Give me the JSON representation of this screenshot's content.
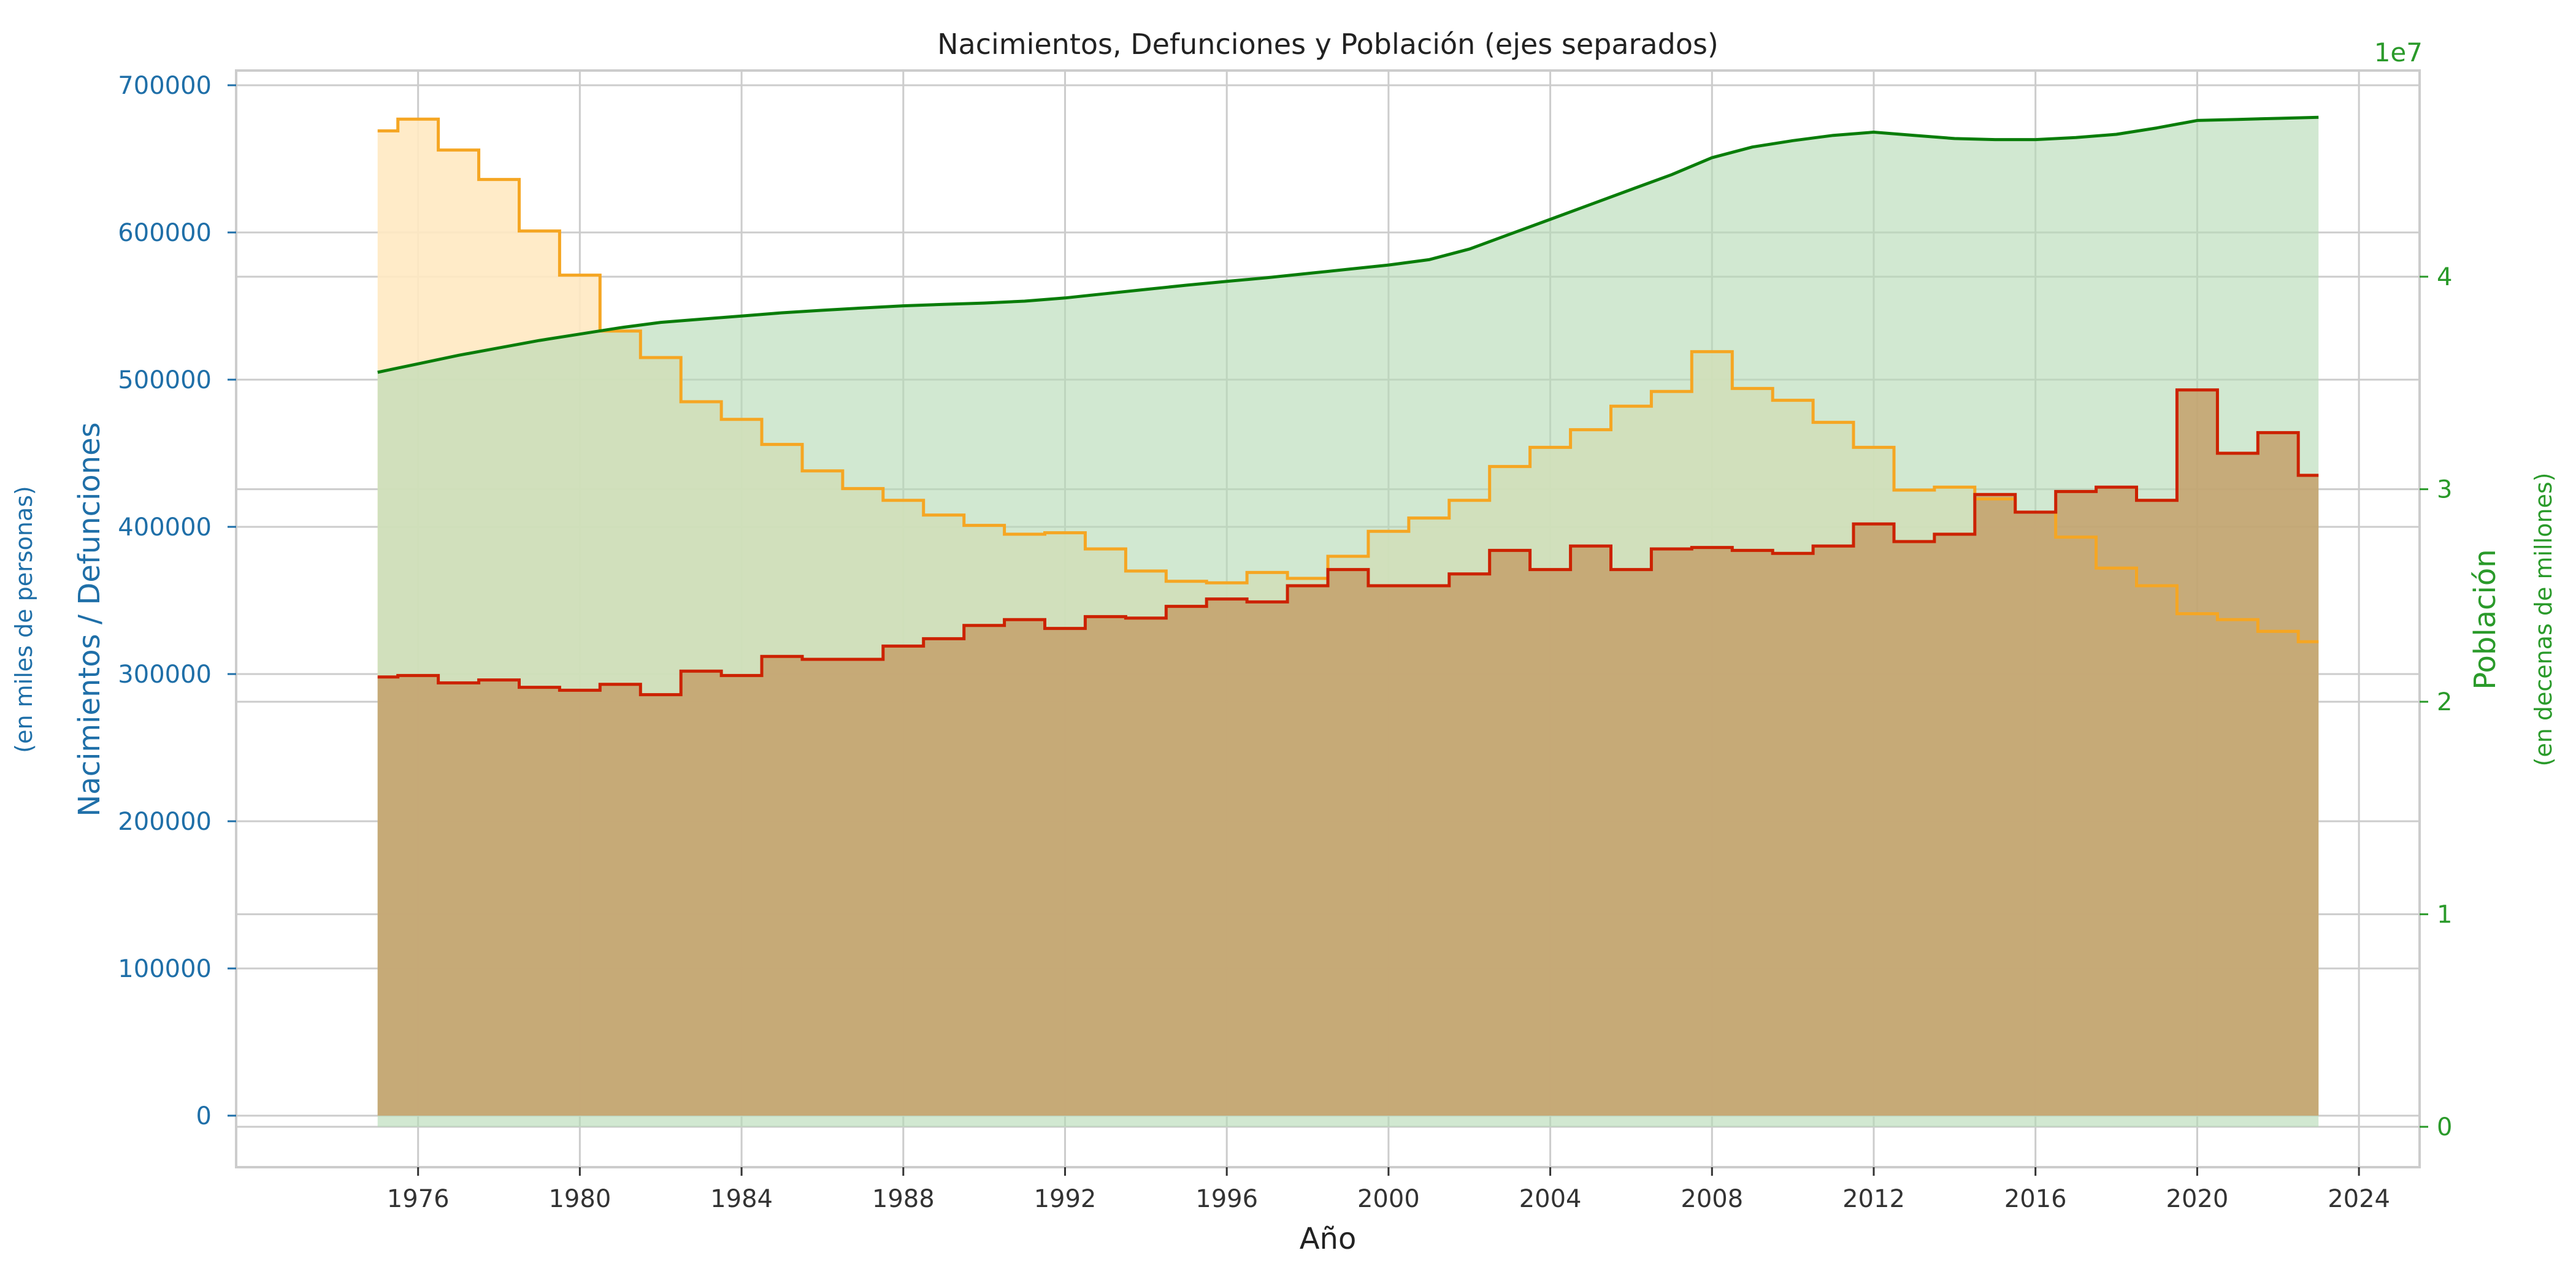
{
  "chart_data": {
    "type": "area",
    "title": "Nacimientos, Defunciones y Población (ejes separados)",
    "xlabel": "Año",
    "ylabel_left": "Nacimientos / Defunciones",
    "ylabel_left_sub": "(en miles de personas)",
    "ylabel_right": "Población",
    "ylabel_right_sub": "(en decenas de millones)",
    "right_axis_offset": "1e7",
    "xlim": [
      1971.5,
      2025.5
    ],
    "ylim_left": [
      -35000,
      710000
    ],
    "ylim_right": [
      -1900000.0,
      49700000.0
    ],
    "x_ticks": [
      1976,
      1980,
      1984,
      1988,
      1992,
      1996,
      2000,
      2004,
      2008,
      2012,
      2016,
      2020,
      2024
    ],
    "y_ticks_left": [
      0,
      100000,
      200000,
      300000,
      400000,
      500000,
      600000,
      700000
    ],
    "y_ticks_right": [
      0,
      1,
      2,
      3,
      4
    ],
    "grid": true,
    "colors": {
      "births": "#f5a623",
      "births_fill": "#ffe9c2",
      "deaths": "#cc2200",
      "deaths_fill": "#c4a06b",
      "population": "#0a7d0a",
      "population_fill": "#b5dab5",
      "left_axis": "#1f6fa8",
      "right_axis": "#2a9a2a"
    },
    "series": [
      {
        "key": "births",
        "x": [
          1975,
          1976,
          1977,
          1978,
          1979,
          1980,
          1981,
          1982,
          1983,
          1984,
          1985,
          1986,
          1987,
          1988,
          1989,
          1990,
          1991,
          1992,
          1993,
          1994,
          1995,
          1996,
          1997,
          1998,
          1999,
          2000,
          2001,
          2002,
          2003,
          2004,
          2005,
          2006,
          2007,
          2008,
          2009,
          2010,
          2011,
          2012,
          2013,
          2014,
          2015,
          2016,
          2017,
          2018,
          2019,
          2020,
          2021,
          2022,
          2023
        ],
        "values": [
          669000,
          677000,
          656000,
          636000,
          601000,
          571000,
          533000,
          515000,
          485000,
          473000,
          456000,
          438000,
          426000,
          418000,
          408000,
          401000,
          395000,
          396000,
          385000,
          370000,
          363000,
          362000,
          369000,
          365000,
          380000,
          397000,
          406000,
          418000,
          441000,
          454000,
          466000,
          482000,
          492000,
          519000,
          494000,
          486000,
          471000,
          454000,
          425000,
          427000,
          419000,
          410000,
          393000,
          372000,
          360000,
          341000,
          337000,
          329000,
          322000
        ]
      },
      {
        "key": "deaths",
        "x": [
          1975,
          1976,
          1977,
          1978,
          1979,
          1980,
          1981,
          1982,
          1983,
          1984,
          1985,
          1986,
          1987,
          1988,
          1989,
          1990,
          1991,
          1992,
          1993,
          1994,
          1995,
          1996,
          1997,
          1998,
          1999,
          2000,
          2001,
          2002,
          2003,
          2004,
          2005,
          2006,
          2007,
          2008,
          2009,
          2010,
          2011,
          2012,
          2013,
          2014,
          2015,
          2016,
          2017,
          2018,
          2019,
          2020,
          2021,
          2022,
          2023
        ],
        "values": [
          298000,
          299000,
          294000,
          296000,
          291000,
          289000,
          293000,
          286000,
          302000,
          299000,
          312000,
          310000,
          310000,
          319000,
          324000,
          333000,
          337000,
          331000,
          339000,
          338000,
          346000,
          351000,
          349000,
          360000,
          371000,
          360000,
          360000,
          368000,
          384000,
          371000,
          387000,
          371000,
          385000,
          386000,
          384000,
          382000,
          387000,
          402000,
          390000,
          395000,
          422000,
          410000,
          424000,
          427000,
          418000,
          493000,
          450000,
          464000,
          435000
        ]
      },
      {
        "key": "population",
        "x": [
          1975,
          1976,
          1977,
          1978,
          1979,
          1980,
          1981,
          1982,
          1983,
          1984,
          1985,
          1986,
          1987,
          1988,
          1989,
          1990,
          1991,
          1992,
          1993,
          1994,
          1995,
          1996,
          1997,
          1998,
          1999,
          2000,
          2001,
          2002,
          2003,
          2004,
          2005,
          2006,
          2007,
          2008,
          2009,
          2010,
          2011,
          2012,
          2013,
          2014,
          2015,
          2016,
          2017,
          2018,
          2019,
          2020,
          2021,
          2022,
          2023
        ],
        "values": [
          35500000,
          35900000,
          36300000,
          36650000,
          37000000,
          37300000,
          37600000,
          37850000,
          38000000,
          38150000,
          38300000,
          38420000,
          38530000,
          38630000,
          38700000,
          38760000,
          38850000,
          39000000,
          39200000,
          39400000,
          39600000,
          39780000,
          39950000,
          40150000,
          40350000,
          40550000,
          40800000,
          41300000,
          42000000,
          42700000,
          43400000,
          44100000,
          44800000,
          45600000,
          46100000,
          46400000,
          46650000,
          46800000,
          46650000,
          46500000,
          46450000,
          46450000,
          46550000,
          46700000,
          47000000,
          47350000,
          47400000,
          47450000,
          47500000
        ]
      }
    ]
  }
}
